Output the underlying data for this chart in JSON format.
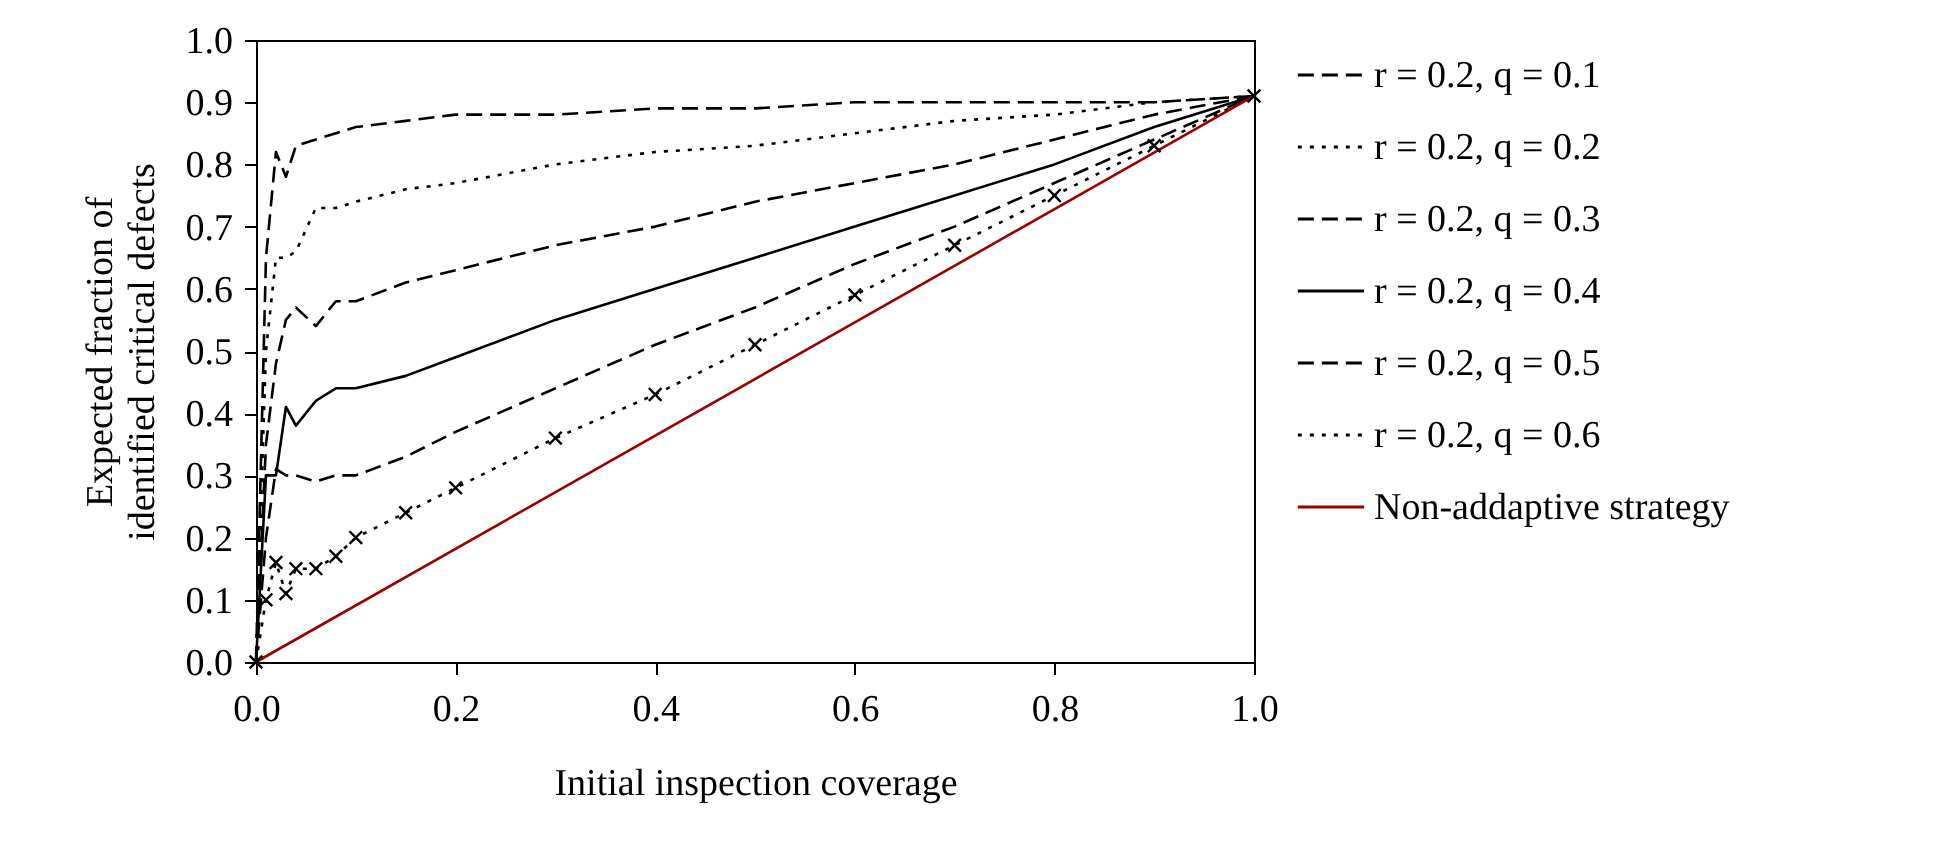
{
  "chart_data": {
    "type": "line",
    "xlabel": "Initial inspection coverage",
    "ylabel": "Expected fraction of\nidentified critical defects",
    "x": [
      0,
      0.01,
      0.02,
      0.03,
      0.04,
      0.06,
      0.08,
      0.1,
      0.15,
      0.2,
      0.3,
      0.4,
      0.5,
      0.6,
      0.7,
      0.8,
      0.9,
      1.0
    ],
    "series": [
      {
        "name": "r = 0.2, q = 0.1",
        "color": "#000000",
        "line_style": "dashed",
        "values": [
          0,
          0.65,
          0.82,
          0.78,
          0.83,
          0.84,
          0.85,
          0.86,
          0.87,
          0.88,
          0.88,
          0.89,
          0.89,
          0.9,
          0.9,
          0.9,
          0.9,
          0.91
        ]
      },
      {
        "name": "r = 0.2, q = 0.2",
        "color": "#000000",
        "line_style": "dotted",
        "values": [
          0,
          0.5,
          0.65,
          0.65,
          0.66,
          0.73,
          0.73,
          0.74,
          0.76,
          0.77,
          0.8,
          0.82,
          0.83,
          0.85,
          0.87,
          0.88,
          0.9,
          0.91
        ]
      },
      {
        "name": "r = 0.2, q = 0.3",
        "color": "#000000",
        "line_style": "dashed",
        "values": [
          0,
          0.35,
          0.48,
          0.55,
          0.57,
          0.54,
          0.58,
          0.58,
          0.61,
          0.63,
          0.67,
          0.7,
          0.74,
          0.77,
          0.8,
          0.84,
          0.88,
          0.91
        ]
      },
      {
        "name": "r = 0.2, q = 0.4",
        "color": "#000000",
        "line_style": "solid",
        "values": [
          0,
          0.3,
          0.3,
          0.41,
          0.38,
          0.42,
          0.44,
          0.44,
          0.46,
          0.49,
          0.55,
          0.6,
          0.65,
          0.7,
          0.75,
          0.8,
          0.86,
          0.91
        ]
      },
      {
        "name": "r = 0.2, q = 0.5",
        "color": "#000000",
        "line_style": "dashed",
        "values": [
          0,
          0.2,
          0.31,
          0.3,
          0.3,
          0.29,
          0.3,
          0.3,
          0.33,
          0.37,
          0.44,
          0.51,
          0.57,
          0.64,
          0.7,
          0.77,
          0.84,
          0.91
        ]
      },
      {
        "name": "r = 0.2, q = 0.6",
        "color": "#000000",
        "line_style": "dotted",
        "marker": "cross",
        "values": [
          0,
          0.1,
          0.16,
          0.11,
          0.15,
          0.15,
          0.17,
          0.2,
          0.24,
          0.28,
          0.36,
          0.43,
          0.51,
          0.59,
          0.67,
          0.75,
          0.83,
          0.91
        ]
      },
      {
        "name": "Non-addaptive strategy",
        "color": "#990000",
        "line_style": "solid",
        "x": [
          0,
          1.0
        ],
        "values": [
          0,
          0.91
        ]
      }
    ],
    "xlim": [
      0,
      1.0
    ],
    "xticks": [
      {
        "value": 0,
        "label": "0.0"
      },
      0.2,
      0.4,
      0.6,
      0.8,
      {
        "value": 1.0,
        "label": "1.0"
      }
    ],
    "ylim": [
      0,
      1.0
    ],
    "yticks": [
      {
        "value": 0,
        "label": "0.0"
      },
      0.1,
      0.2,
      0.3,
      0.4,
      0.5,
      0.6,
      0.7,
      0.8,
      0.9,
      {
        "value": 1.0,
        "label": "1.0"
      }
    ],
    "grid": false,
    "legend": "right"
  }
}
